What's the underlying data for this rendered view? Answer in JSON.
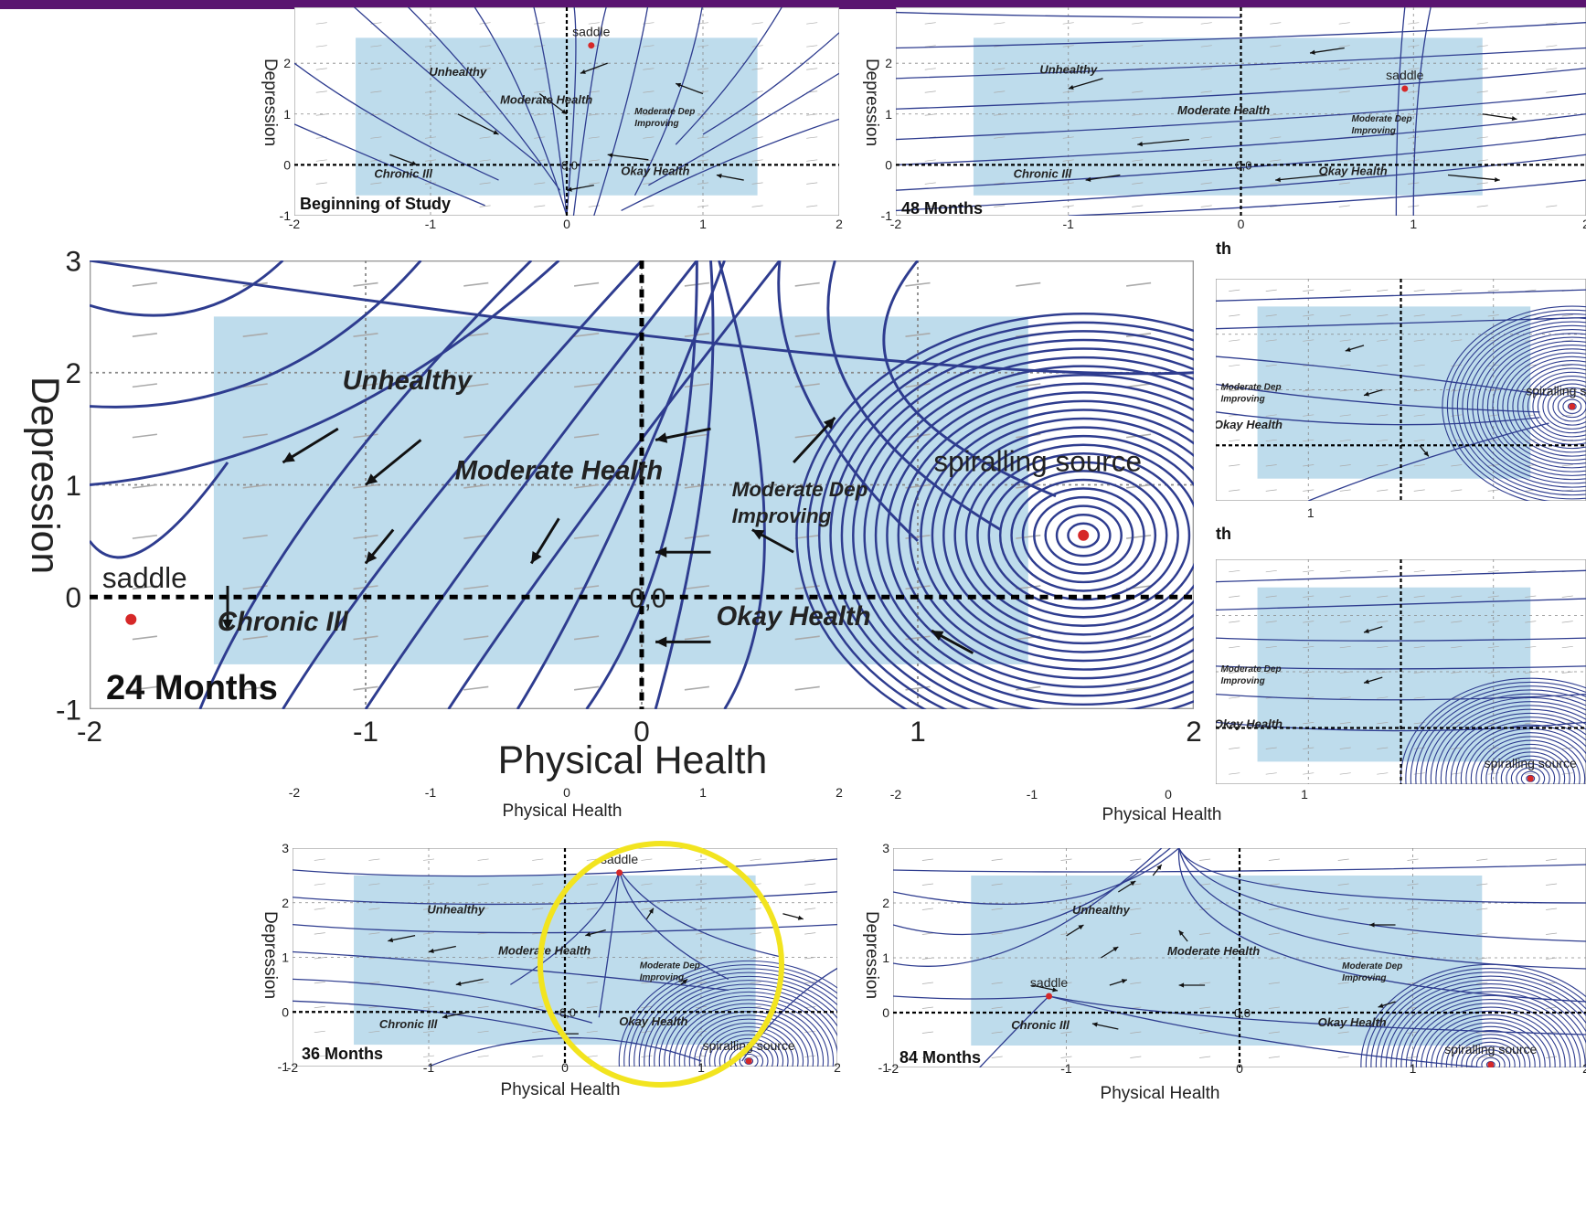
{
  "header": {
    "bar_color": "#5a1470"
  },
  "colors": {
    "region": "#a8d0e6",
    "stream": "#2e3c8f",
    "arrow": "#111111",
    "fixed_point": "#d62828",
    "highlight": "#f2e41f"
  },
  "chart_data": [
    {
      "type": "vector-field",
      "panel_label": "Beginning of Study",
      "xlabel": "Physical Health",
      "ylabel": "Depression",
      "xlim": [
        -2,
        2
      ],
      "ylim": [
        -1,
        3
      ],
      "xticks": [
        "-2",
        "-1",
        "0",
        "1",
        "2"
      ],
      "yticks": [
        "-1",
        "0",
        "1",
        "2"
      ],
      "grid": true,
      "regions": [
        "Unhealthy",
        "Moderate Health",
        "Moderate Dep Improving",
        "Chronic Ill",
        "Okay Health"
      ],
      "origin_label": "0,0",
      "fixed_points": [
        {
          "label": "saddle",
          "x": 0.18,
          "y": 2.35
        }
      ]
    },
    {
      "type": "vector-field",
      "panel_label": "48 Months",
      "xlabel": "Physical Health",
      "ylabel": "Depression",
      "xlim": [
        -2,
        2
      ],
      "ylim": [
        -1,
        3
      ],
      "xticks": [
        "-2",
        "-1",
        "0",
        "1",
        "2"
      ],
      "yticks": [
        "-1",
        "0",
        "1",
        "2"
      ],
      "grid": true,
      "regions": [
        "Unhealthy",
        "Moderate Health",
        "Moderate Dep Improving",
        "Chronic Ill",
        "Okay Health"
      ],
      "origin_label": "0,0",
      "fixed_points": [
        {
          "label": "saddle",
          "x": 0.95,
          "y": 1.5
        }
      ]
    },
    {
      "type": "vector-field",
      "panel_label": "24 Months",
      "xlabel": "Physical Health",
      "ylabel": "Depression",
      "xlim": [
        -2,
        2
      ],
      "ylim": [
        -1,
        3
      ],
      "xticks": [
        "-2",
        "-1",
        "0",
        "1",
        "2"
      ],
      "yticks": [
        "-1",
        "0",
        "1",
        "2",
        "3"
      ],
      "grid": true,
      "regions": [
        "Unhealthy",
        "Moderate Health",
        "Moderate Dep Improving",
        "Chronic Ill",
        "Okay Health"
      ],
      "origin_label": "0,0",
      "fixed_points": [
        {
          "label": "saddle",
          "x": -1.85,
          "y": -0.2
        },
        {
          "label": "spiralling source",
          "x": 1.6,
          "y": 0.55
        }
      ]
    },
    {
      "type": "vector-field",
      "panel_label": "36 Months",
      "xlabel": "Physical Health",
      "ylabel": "Depression",
      "xlim": [
        -2,
        2
      ],
      "ylim": [
        -1,
        3
      ],
      "xticks": [
        "-2",
        "-1",
        "0",
        "1",
        "2"
      ],
      "yticks": [
        "-1",
        "0",
        "1",
        "2",
        "3"
      ],
      "grid": true,
      "regions": [
        "Unhealthy",
        "Moderate Health",
        "Moderate Dep Improving",
        "Chronic Ill",
        "Okay Health"
      ],
      "origin_label": "0,0",
      "fixed_points": [
        {
          "label": "saddle",
          "x": 0.4,
          "y": 2.55
        },
        {
          "label": "spiralling source",
          "x": 1.35,
          "y": -0.9
        }
      ]
    },
    {
      "type": "vector-field",
      "panel_label": "84 Months",
      "xlabel": "Physical Health",
      "ylabel": "Depression",
      "xlim": [
        -2,
        2
      ],
      "ylim": [
        -1,
        3
      ],
      "xticks": [
        "-2",
        "-1",
        "0",
        "1",
        "2"
      ],
      "yticks": [
        "-1",
        "0",
        "1",
        "2",
        "3"
      ],
      "grid": true,
      "regions": [
        "Unhealthy",
        "Moderate Health",
        "Moderate Dep Improving",
        "Chronic Ill",
        "Okay Health"
      ],
      "origin_label": "0,0",
      "fixed_points": [
        {
          "label": "saddle",
          "x": -1.1,
          "y": 0.3
        },
        {
          "label": "spiralling source",
          "x": 1.45,
          "y": -0.95
        }
      ]
    },
    {
      "type": "vector-field",
      "panel_label": "th",
      "partial": true,
      "xticks": [
        "1"
      ],
      "regions": [
        "Moderate Dep Improving",
        "Okay Health"
      ],
      "fixed_points": [
        {
          "label": "spiralling source",
          "x": 1.85,
          "y": 0.7
        }
      ]
    },
    {
      "type": "vector-field",
      "panel_label": "th",
      "partial": true,
      "xticks": [
        "-2",
        "-1",
        "0",
        "1"
      ],
      "xlabel": "Physical Health",
      "regions": [
        "Moderate Dep Improving",
        "Okay Health"
      ],
      "fixed_points": [
        {
          "label": "spiralling source",
          "x": 1.4,
          "y": -0.9
        }
      ]
    }
  ]
}
